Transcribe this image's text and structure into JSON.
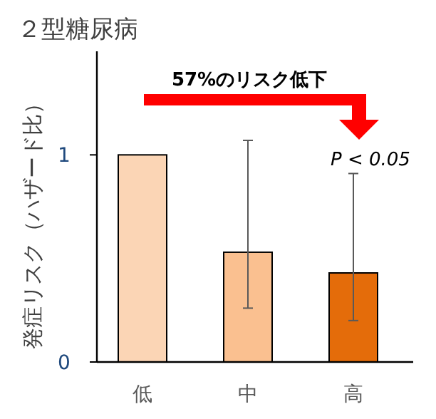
{
  "chart_data": {
    "type": "bar",
    "title": "２型糖尿病",
    "ylabel": "発症リスク（ハザード比）",
    "categories": [
      "低",
      "中",
      "高"
    ],
    "values": [
      1,
      0.53,
      0.43
    ],
    "colors": [
      "#fbd5b5",
      "#fac090",
      "#e46c0a"
    ],
    "errors": [
      null,
      [
        0.26,
        1.07
      ],
      [
        0.2,
        0.91
      ]
    ],
    "ylim": [
      0,
      1.5
    ],
    "yticks": [
      0,
      1
    ],
    "annotations": [
      "57%のリスク低下",
      "P < 0.05"
    ]
  }
}
